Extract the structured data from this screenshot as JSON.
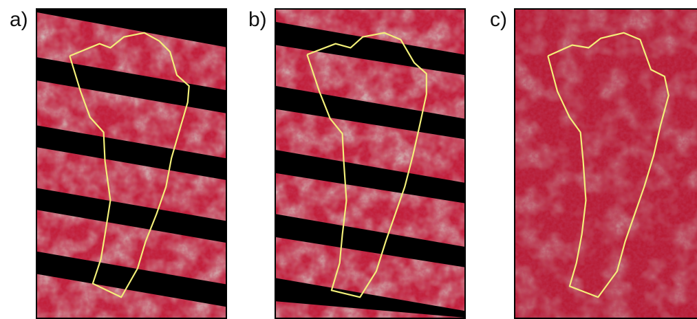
{
  "panels": [
    {
      "label": "a)",
      "has_stripes": true
    },
    {
      "label": "b)",
      "has_stripes": true
    },
    {
      "label": "c)",
      "has_stripes": false
    }
  ],
  "colors": {
    "outline": "#f4f07a",
    "stripe": "#000000",
    "vegetation": "#c21f3a",
    "bare_soil": "#a99a92"
  },
  "icons": {
    "boundary": "yellow-polygon-outline"
  }
}
